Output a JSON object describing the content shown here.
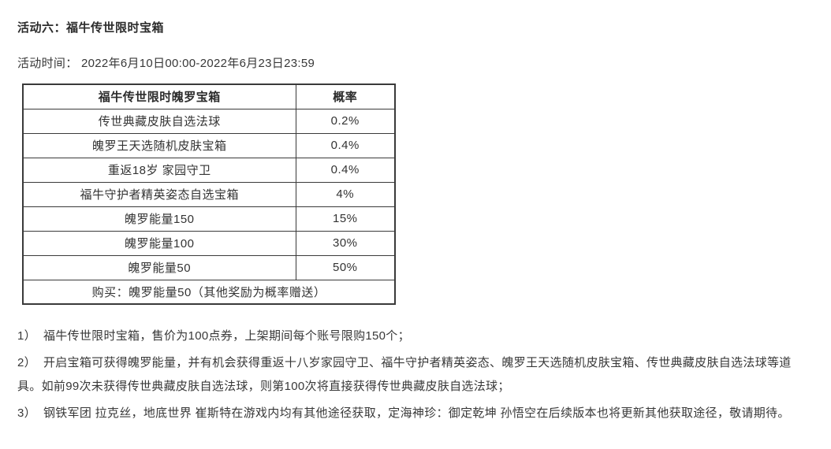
{
  "page": {
    "title": "活动六：福牛传世限时宝箱",
    "time_label": "活动时间： 2022年6月10日00:00-2022年6月23日23:59"
  },
  "table": {
    "header": {
      "item": "福牛传世限时魄罗宝箱",
      "probability": "概率"
    },
    "rows": [
      {
        "item": "传世典藏皮肤自选法球",
        "probability": "0.2%"
      },
      {
        "item": "魄罗王天选随机皮肤宝箱",
        "probability": "0.4%"
      },
      {
        "item": "重返18岁 家园守卫",
        "probability": "0.4%"
      },
      {
        "item": "福牛守护者精英姿态自选宝箱",
        "probability": "4%"
      },
      {
        "item": "魄罗能量150",
        "probability": "15%"
      },
      {
        "item": "魄罗能量100",
        "probability": "30%"
      },
      {
        "item": "魄罗能量50",
        "probability": "50%"
      }
    ],
    "footer": "购买：魄罗能量50（其他奖励为概率赠送）"
  },
  "notes": [
    {
      "label": "1）",
      "text": "福牛传世限时宝箱，售价为100点券，上架期间每个账号限购150个；"
    },
    {
      "label": "2）",
      "text": "开启宝箱可获得魄罗能量，并有机会获得重返十八岁家园守卫、福牛守护者精英姿态、魄罗王天选随机皮肤宝箱、传世典藏皮肤自选法球等道具。如前99次未获得传世典藏皮肤自选法球，则第100次将直接获得传世典藏皮肤自选法球；"
    },
    {
      "label": "3）",
      "text": "钢铁军团 拉克丝，地底世界 崔斯特在游戏内均有其他途径获取，定海神珍：御定乾坤 孙悟空在后续版本也将更新其他获取途径，敬请期待。"
    }
  ]
}
